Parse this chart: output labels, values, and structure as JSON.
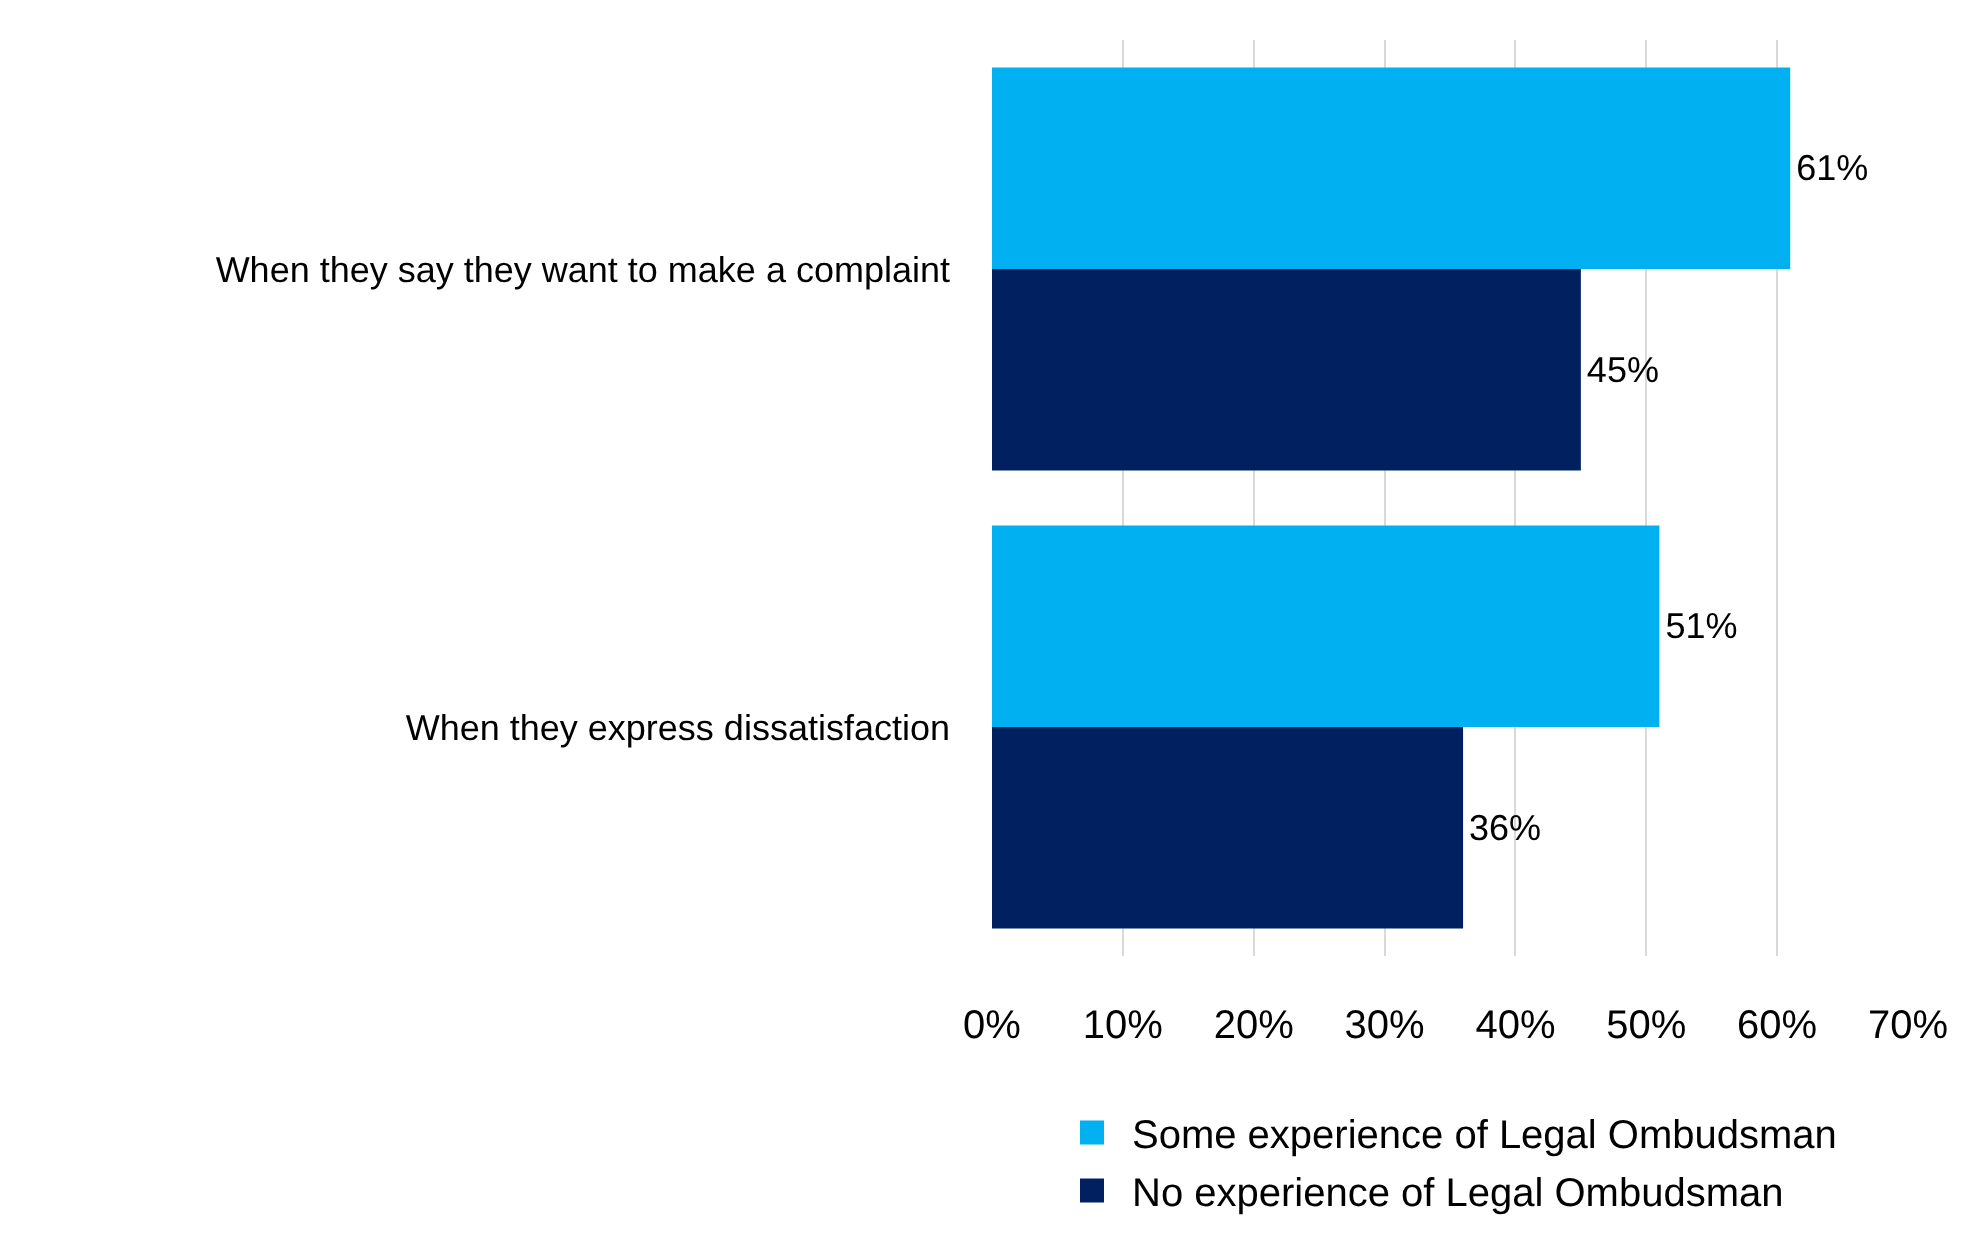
{
  "chart_data": {
    "type": "bar",
    "orientation": "horizontal",
    "categories": [
      "When they say they want to make a complaint",
      "When they express dissatisfaction"
    ],
    "series": [
      {
        "name": "Some experience of Legal Ombudsman",
        "color": "#00b0f0",
        "values": [
          61,
          51
        ],
        "value_labels": [
          "61%",
          "51%"
        ]
      },
      {
        "name": "No experience of Legal Ombudsman",
        "color": "#002060",
        "values": [
          45,
          36
        ],
        "value_labels": [
          "45%",
          "36%"
        ]
      }
    ],
    "xlim": [
      0,
      70
    ],
    "xticks": [
      {
        "value": 0,
        "label": "0%"
      },
      {
        "value": 10,
        "label": "10%"
      },
      {
        "value": 20,
        "label": "20%"
      },
      {
        "value": 30,
        "label": "30%"
      },
      {
        "value": 40,
        "label": "40%"
      },
      {
        "value": 50,
        "label": "50%"
      },
      {
        "value": 60,
        "label": "60%"
      },
      {
        "value": 70,
        "label": "70%"
      }
    ],
    "grid": "x",
    "legend": "bottom"
  }
}
